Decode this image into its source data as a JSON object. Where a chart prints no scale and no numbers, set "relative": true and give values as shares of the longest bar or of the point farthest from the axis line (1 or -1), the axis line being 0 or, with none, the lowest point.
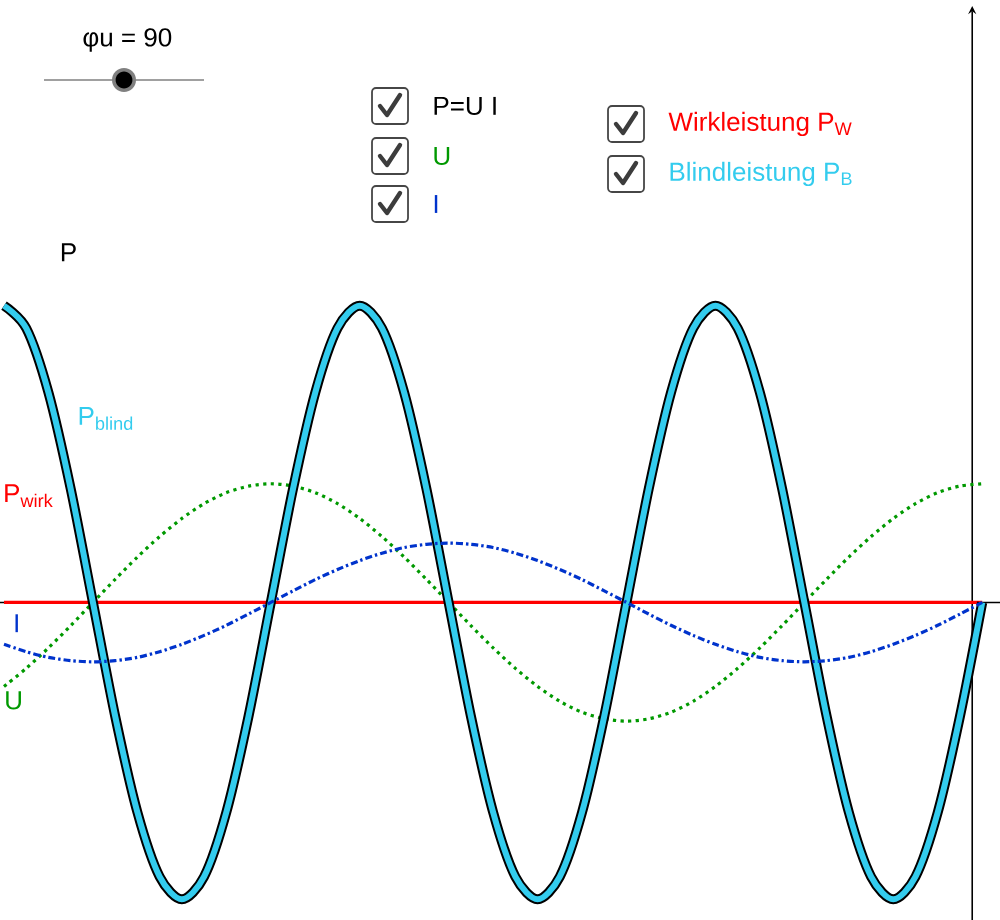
{
  "chart_data": {
    "type": "line",
    "relative": true,
    "marker": "none",
    "categories": [
      null,
      null,
      null,
      null,
      null,
      null,
      null,
      null,
      null,
      null,
      null,
      null,
      null,
      null,
      null,
      null,
      null,
      null,
      null,
      null,
      null,
      null,
      null,
      null,
      null,
      null,
      null,
      null,
      null,
      null,
      null,
      null,
      null,
      null,
      null,
      null,
      null,
      null,
      null,
      null,
      null,
      null,
      null,
      null,
      null
    ],
    "series": [
      {
        "name": "P$_{wirk}$",
        "color": "#ff0000",
        "line_style": "solid",
        "values": [
          0,
          0,
          0,
          0,
          0,
          0,
          0,
          0,
          0,
          0,
          0,
          0,
          0,
          0,
          0,
          0,
          0,
          0,
          0,
          0,
          0,
          0,
          0,
          0,
          0,
          0,
          0,
          0,
          0,
          0,
          0,
          0,
          0,
          0,
          0,
          0,
          0,
          0,
          0,
          0,
          0,
          0,
          0,
          0,
          0
        ]
      },
      {
        "name": "U",
        "color": "#009900",
        "line_style": "dotted",
        "values": [
          -0.283,
          -0.222,
          -0.153,
          -0.078,
          0,
          0.078,
          0.153,
          0.222,
          0.283,
          0.333,
          0.37,
          0.392,
          0.4,
          0.392,
          0.37,
          0.333,
          0.283,
          0.222,
          0.153,
          0.078,
          0,
          -0.078,
          -0.153,
          -0.222,
          -0.283,
          -0.333,
          -0.37,
          -0.392,
          -0.4,
          -0.392,
          -0.37,
          -0.333,
          -0.283,
          -0.222,
          -0.153,
          -0.078,
          0,
          0.078,
          0.153,
          0.222,
          0.283,
          0.333,
          0.37,
          0.392,
          0.4
        ]
      },
      {
        "name": "P",
        "color": "#000000",
        "line_style": "solid",
        "values": [
          1,
          0.924,
          0.707,
          0.383,
          0,
          -0.383,
          -0.707,
          -0.924,
          -1,
          -0.924,
          -0.707,
          -0.383,
          0,
          0.383,
          0.707,
          0.924,
          1,
          0.924,
          0.707,
          0.383,
          0,
          -0.383,
          -0.707,
          -0.924,
          -1,
          -0.924,
          -0.707,
          -0.383,
          0,
          0.383,
          0.707,
          0.924,
          1,
          0.924,
          0.707,
          0.383,
          0,
          -0.383,
          -0.707,
          -0.924,
          -1,
          -0.924,
          -0.707,
          -0.383,
          0
        ]
      },
      {
        "name": "P$_{blind}$",
        "color": "#33ccee",
        "line_style": "solid",
        "values": [
          1,
          0.924,
          0.707,
          0.383,
          0,
          -0.383,
          -0.707,
          -0.924,
          -1,
          -0.924,
          -0.707,
          -0.383,
          0,
          0.383,
          0.707,
          0.924,
          1,
          0.924,
          0.707,
          0.383,
          0,
          -0.383,
          -0.707,
          -0.924,
          -1,
          -0.924,
          -0.707,
          -0.383,
          0,
          0.383,
          0.707,
          0.924,
          1,
          0.924,
          0.707,
          0.383,
          0,
          -0.383,
          -0.707,
          -0.924,
          -1,
          -0.924,
          -0.707,
          -0.383,
          0
        ]
      },
      {
        "name": "I",
        "color": "#0033cc",
        "line_style": "dashed",
        "values": [
          -0.141,
          -0.166,
          -0.185,
          -0.196,
          -0.2,
          -0.196,
          -0.185,
          -0.166,
          -0.141,
          -0.111,
          -0.077,
          -0.039,
          0,
          0.039,
          0.077,
          0.111,
          0.141,
          0.166,
          0.185,
          0.196,
          0.2,
          0.196,
          0.185,
          0.166,
          0.141,
          0.111,
          0.077,
          0.039,
          0,
          -0.039,
          -0.077,
          -0.111,
          -0.141,
          -0.166,
          -0.185,
          -0.196,
          -0.2,
          -0.196,
          -0.185,
          -0.166,
          -0.141,
          -0.111,
          -0.077,
          -0.039,
          0
        ]
      }
    ],
    "annotations": [
      "φu = 90",
      "P=U I",
      "U",
      "I",
      "Wirkleistung P$_{W}$",
      "Blindleistung P$_{B}$"
    ]
  }
}
